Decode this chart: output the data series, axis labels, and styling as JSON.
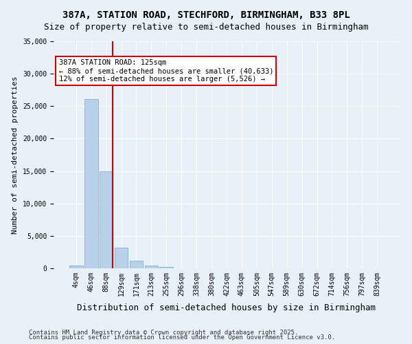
{
  "title_line1": "387A, STATION ROAD, STECHFORD, BIRMINGHAM, B33 8PL",
  "title_line2": "Size of property relative to semi-detached houses in Birmingham",
  "xlabel": "Distribution of semi-detached houses by size in Birmingham",
  "ylabel": "Number of semi-detached properties",
  "bar_color": "#b8d0e8",
  "bar_edge_color": "#6aaad4",
  "bin_labels": [
    "4sqm",
    "46sqm",
    "88sqm",
    "129sqm",
    "171sqm",
    "213sqm",
    "255sqm",
    "296sqm",
    "338sqm",
    "380sqm",
    "422sqm",
    "463sqm",
    "505sqm",
    "547sqm",
    "589sqm",
    "630sqm",
    "672sqm",
    "714sqm",
    "756sqm",
    "797sqm",
    "839sqm"
  ],
  "bar_values": [
    400,
    26100,
    15000,
    3200,
    1200,
    450,
    250,
    0,
    0,
    0,
    0,
    0,
    0,
    0,
    0,
    0,
    0,
    0,
    0,
    0,
    0
  ],
  "vline_x": 2.45,
  "annotation_title": "387A STATION ROAD: 125sqm",
  "annotation_line2": "← 88% of semi-detached houses are smaller (40,633)",
  "annotation_line3": "12% of semi-detached houses are larger (5,526) →",
  "vline_color": "#cc0000",
  "ylim": [
    0,
    35000
  ],
  "yticks": [
    0,
    5000,
    10000,
    15000,
    20000,
    25000,
    30000,
    35000
  ],
  "footer_line1": "Contains HM Land Registry data © Crown copyright and database right 2025.",
  "footer_line2": "Contains public sector information licensed under the Open Government Licence v3.0.",
  "bg_color": "#e8f0f8",
  "plot_bg_color": "#e8f0f8",
  "annotation_box_color": "white",
  "annotation_box_edge": "#cc0000",
  "title_fontsize": 10,
  "subtitle_fontsize": 9,
  "xlabel_fontsize": 9,
  "ylabel_fontsize": 8,
  "tick_fontsize": 7,
  "annotation_fontsize": 7.5,
  "footer_fontsize": 6.5
}
